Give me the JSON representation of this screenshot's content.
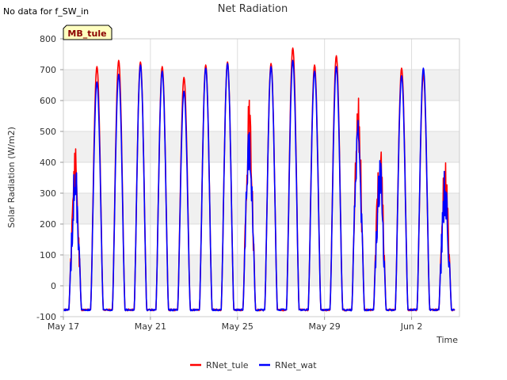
{
  "note": "No data for f_SW_in",
  "chart_data": {
    "type": "line",
    "title": "Net Radiation",
    "xlabel": "Time",
    "ylabel": "Solar Radiation (W/m2)",
    "site_label": "MB_tule",
    "ylim": [
      -100,
      800
    ],
    "xlim_days": [
      0,
      18.2
    ],
    "x_tick_labels": [
      "May 17",
      "May 21",
      "May 25",
      "May 29",
      "Jun 2"
    ],
    "x_tick_days": [
      0,
      4,
      8,
      12,
      16
    ],
    "y_ticks": [
      -100,
      0,
      100,
      200,
      300,
      400,
      500,
      600,
      700,
      800
    ],
    "grid": true,
    "legend_position": "bottom",
    "series": [
      {
        "name": "RNet_tule",
        "color": "#ff0000",
        "day_peaks": [
          455,
          710,
          730,
          725,
          710,
          675,
          715,
          725,
          610,
          720,
          770,
          715,
          745,
          615,
          490,
          705,
          685,
          430
        ]
      },
      {
        "name": "RNet_wat",
        "color": "#0000ff",
        "day_peaks": [
          420,
          660,
          685,
          715,
          695,
          630,
          705,
          720,
          550,
          710,
          730,
          695,
          710,
          580,
          430,
          680,
          705,
          400
        ]
      }
    ],
    "night_value": -78,
    "colors": {
      "grid_band": "#f0f0f0",
      "grid_line": "#dddddd"
    }
  }
}
